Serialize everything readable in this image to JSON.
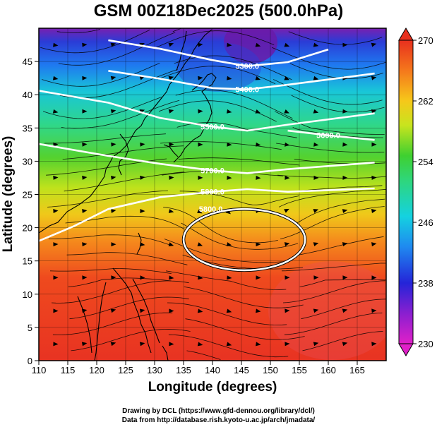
{
  "title": "GSM 00Z18Dec2025 (500.0hPa)",
  "xaxis": {
    "label": "Longitude (degrees)",
    "ticks": [
      "110",
      "115",
      "120",
      "125",
      "130",
      "135",
      "140",
      "145",
      "150",
      "155",
      "160",
      "165"
    ],
    "range": [
      110,
      170
    ]
  },
  "yaxis": {
    "label": "Latitude  (degrees)",
    "ticks": [
      "0",
      "5",
      "10",
      "15",
      "20",
      "25",
      "30",
      "35",
      "40",
      "45"
    ],
    "range": [
      0,
      50
    ]
  },
  "colorbar": {
    "range": [
      230,
      270
    ],
    "ticks": [
      "230",
      "238",
      "246",
      "254",
      "262",
      "270"
    ]
  },
  "contours": [
    {
      "label": "5300.0",
      "lat": [
        48.2,
        46.9,
        45.2,
        44.3,
        44.9,
        46.8
      ],
      "lon": [
        122,
        131,
        140,
        146,
        153,
        160
      ]
    },
    {
      "label": "5400.0",
      "lat": [
        43.6,
        42.4,
        41.0,
        40.8,
        41.5,
        43.2
      ],
      "lon": [
        122,
        131,
        140,
        146,
        153,
        168
      ]
    },
    {
      "label": "5500.0",
      "lat": [
        40.6,
        38.8,
        36.5,
        35.2,
        34.6,
        35.5,
        37.2
      ],
      "lon": [
        110,
        122,
        131,
        140,
        146,
        153,
        168
      ]
    },
    {
      "label": "5600.0",
      "lat": [
        34.6,
        33.9,
        33.2
      ],
      "lon": [
        153,
        160,
        168
      ]
    },
    {
      "label": "5700.0",
      "lat": [
        32.6,
        30.8,
        29.6,
        28.6,
        28.2,
        28.8,
        29.8
      ],
      "lon": [
        110,
        122,
        131,
        140,
        146,
        153,
        168
      ]
    },
    {
      "label": "5800.0",
      "lat": [
        18.0,
        20.2,
        22.8,
        24.6,
        25.4,
        25.8,
        25.4,
        25.9
      ],
      "lon": [
        110,
        116,
        122,
        131,
        140,
        146,
        153,
        168
      ]
    }
  ],
  "closed_contour": {
    "label": "5800.0",
    "center_lon": 145.5,
    "center_lat": 18.2,
    "radius_lon": 10.5,
    "radius_lat": 4.6
  },
  "credits": [
    "Drawing by DCL (https://www.gfd-dennou.org/library/dcl/)",
    "Data from http://database.rish.kyoto-u.ac.jp/arch/jmadata/"
  ]
}
